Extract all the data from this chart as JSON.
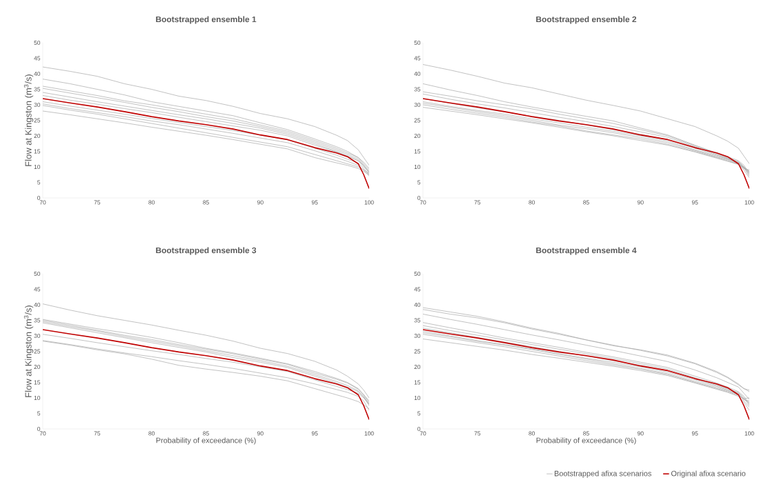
{
  "chart_data": [
    {
      "type": "line",
      "title": "Bootstrapped ensemble 1",
      "ylabel": "Flow at Kingston (m$^{3}$/s)",
      "xlim": [
        70,
        100
      ],
      "ylim": [
        0,
        50
      ],
      "xticks": [
        70,
        75,
        80,
        85,
        90,
        95,
        100
      ],
      "yticks": [
        0,
        5,
        10,
        15,
        20,
        25,
        30,
        35,
        40,
        45,
        50
      ],
      "x": [
        70,
        72.5,
        75,
        77.5,
        80,
        82.5,
        85,
        87.5,
        90,
        92.5,
        95,
        97,
        98,
        99,
        99.5,
        100
      ],
      "series": [
        {
          "color": "#a6a6a6",
          "values": [
            42.2,
            40.8,
            39.2,
            36.8,
            35.0,
            32.8,
            31.4,
            29.5,
            27.2,
            25.5,
            23.0,
            20.2,
            18.5,
            15.5,
            13,
            10.5
          ]
        },
        {
          "color": "#a6a6a6",
          "values": [
            38.3,
            36.8,
            35.0,
            33.2,
            31.0,
            29.5,
            28.0,
            26.5,
            24.2,
            22.0,
            19.0,
            16.5,
            15.0,
            13.0,
            11.5,
            9.5
          ]
        },
        {
          "color": "#a6a6a6",
          "values": [
            36,
            34.5,
            33.0,
            31.3,
            30.0,
            28.5,
            27.0,
            25.5,
            23.5,
            21.5,
            18.5,
            16.0,
            14.5,
            13.0,
            11.0,
            9
          ]
        },
        {
          "color": "#a6a6a6",
          "values": [
            35.3,
            33.8,
            32.3,
            30.8,
            29.2,
            27.8,
            26.2,
            24.8,
            23.0,
            21.0,
            18.0,
            15.5,
            14.0,
            12.5,
            10.5,
            8.5
          ]
        },
        {
          "color": "#a6a6a6",
          "values": [
            34,
            32.5,
            31.0,
            29.6,
            28.2,
            26.8,
            25.5,
            24.0,
            22.5,
            20.5,
            17.5,
            15.0,
            13.5,
            12.0,
            10.5,
            8
          ]
        },
        {
          "color": "#a6a6a6",
          "values": [
            33,
            31.5,
            30.2,
            28.8,
            27.5,
            26.0,
            24.6,
            23.2,
            21.8,
            20.0,
            17.0,
            14.8,
            13.5,
            12.0,
            10.0,
            8.5
          ]
        },
        {
          "color": "#a6a6a6",
          "values": [
            31,
            29.6,
            28.3,
            27.0,
            25.6,
            24.3,
            23.0,
            21.7,
            20.2,
            18.7,
            16.0,
            13.8,
            12.5,
            11.2,
            9.5,
            7.5
          ]
        },
        {
          "color": "#a6a6a6",
          "values": [
            30.3,
            28.8,
            27.5,
            26.2,
            24.8,
            23.6,
            22.2,
            20.8,
            19.3,
            17.8,
            15.2,
            13.0,
            11.8,
            10.5,
            9.0,
            7
          ]
        },
        {
          "color": "#a6a6a6",
          "values": [
            29.8,
            28.3,
            27.0,
            25.5,
            24.0,
            22.5,
            21.0,
            19.5,
            18.0,
            16.5,
            14.0,
            12.0,
            11.0,
            10.0,
            9.0,
            8
          ]
        },
        {
          "color": "#a6a6a6",
          "values": [
            28,
            26.8,
            25.5,
            24.2,
            22.8,
            21.5,
            20.2,
            18.8,
            17.3,
            15.8,
            13.0,
            11.3,
            10.5,
            9.5,
            8.5,
            7.5
          ]
        },
        {
          "color": "#c00000",
          "values": [
            32,
            30.6,
            29.3,
            27.8,
            26.2,
            24.8,
            23.6,
            22.2,
            20.3,
            18.8,
            16.2,
            14.5,
            13.3,
            11,
            7.5,
            3
          ]
        }
      ]
    },
    {
      "type": "line",
      "title": "Bootstrapped ensemble 2",
      "xlim": [
        70,
        100
      ],
      "ylim": [
        0,
        50
      ],
      "xticks": [
        70,
        75,
        80,
        85,
        90,
        95,
        100
      ],
      "yticks": [
        0,
        5,
        10,
        15,
        20,
        25,
        30,
        35,
        40,
        45,
        50
      ],
      "x": [
        70,
        72.5,
        75,
        77.5,
        80,
        82.5,
        85,
        87.5,
        90,
        92.5,
        95,
        97,
        98,
        99,
        99.5,
        100
      ],
      "series": [
        {
          "color": "#a6a6a6",
          "values": [
            43,
            41.2,
            39.2,
            37.0,
            35.5,
            33.5,
            31.5,
            29.8,
            28.0,
            25.5,
            23.0,
            20.0,
            18.3,
            16.0,
            13.5,
            11
          ]
        },
        {
          "color": "#a6a6a6",
          "values": [
            36.8,
            34.8,
            33.0,
            31.0,
            29.3,
            27.8,
            26.3,
            24.8,
            22.5,
            20.3,
            17.0,
            14.5,
            13.3,
            12.0,
            10.5,
            8
          ]
        },
        {
          "color": "#a6a6a6",
          "values": [
            34.2,
            32.8,
            31.3,
            30.0,
            28.7,
            27.0,
            25.5,
            24.0,
            22.0,
            20.0,
            16.8,
            14.3,
            13.0,
            11.7,
            10.0,
            7.5
          ]
        },
        {
          "color": "#a6a6a6",
          "values": [
            33.5,
            31.8,
            30.3,
            29.0,
            27.5,
            26.0,
            24.6,
            23.0,
            21.3,
            19.5,
            16.5,
            14.0,
            12.8,
            11.5,
            10.0,
            8.5
          ]
        },
        {
          "color": "#a6a6a6",
          "values": [
            32,
            30.5,
            29.0,
            27.7,
            26.3,
            25.0,
            23.5,
            22.0,
            20.5,
            18.8,
            16.0,
            13.8,
            12.7,
            11.3,
            9.8,
            7
          ]
        },
        {
          "color": "#a6a6a6",
          "values": [
            31,
            29.5,
            28.2,
            27.0,
            25.5,
            24.2,
            22.8,
            21.5,
            20.0,
            18.3,
            15.5,
            13.5,
            12.5,
            11.2,
            9.5,
            8
          ]
        },
        {
          "color": "#a6a6a6",
          "values": [
            30.5,
            29.2,
            27.8,
            26.5,
            25.0,
            23.5,
            22.3,
            21.0,
            19.5,
            17.8,
            15.3,
            13.2,
            12.3,
            11.0,
            9.0,
            6.5
          ]
        },
        {
          "color": "#a6a6a6",
          "values": [
            30,
            28.6,
            27.3,
            26.0,
            24.5,
            23.2,
            21.6,
            20.3,
            19.0,
            17.3,
            15.0,
            13.0,
            12.0,
            10.8,
            9.5,
            9
          ]
        },
        {
          "color": "#a6a6a6",
          "values": [
            29.2,
            28.0,
            26.8,
            25.5,
            24.2,
            22.8,
            21.3,
            20.0,
            18.5,
            17.0,
            14.8,
            12.8,
            11.8,
            10.8,
            9.8,
            8.5
          ]
        },
        {
          "color": "#c00000",
          "values": [
            32,
            30.6,
            29.3,
            27.8,
            26.2,
            24.8,
            23.6,
            22.2,
            20.3,
            18.8,
            16.2,
            14.5,
            13.3,
            11,
            7.5,
            3
          ]
        }
      ]
    },
    {
      "type": "line",
      "title": "Bootstrapped ensemble 3",
      "xlabel": "Probability of exceedance (%)",
      "ylabel": "Flow at Kingston (m$^{3}$/s)",
      "xlim": [
        70,
        100
      ],
      "ylim": [
        0,
        50
      ],
      "xticks": [
        70,
        75,
        80,
        85,
        90,
        95,
        100
      ],
      "yticks": [
        0,
        5,
        10,
        15,
        20,
        25,
        30,
        35,
        40,
        45,
        50
      ],
      "x": [
        70,
        72.5,
        75,
        77.5,
        80,
        82.5,
        85,
        87.5,
        90,
        92.5,
        95,
        97,
        98,
        99,
        99.5,
        100
      ],
      "series": [
        {
          "color": "#a6a6a6",
          "values": [
            40.3,
            38.3,
            36.5,
            35.0,
            33.5,
            31.8,
            30.2,
            28.3,
            26.0,
            24.3,
            21.8,
            19.0,
            17.0,
            14.5,
            12.5,
            10
          ]
        },
        {
          "color": "#a6a6a6",
          "values": [
            35.3,
            33.8,
            32.3,
            31.0,
            29.5,
            27.8,
            26.0,
            24.5,
            22.8,
            21.0,
            18.5,
            16.3,
            15.0,
            13.0,
            11.0,
            8.5
          ]
        },
        {
          "color": "#a6a6a6",
          "values": [
            35,
            33.4,
            31.8,
            30.2,
            28.8,
            27.2,
            25.7,
            24.2,
            22.5,
            20.8,
            18.0,
            16.0,
            14.8,
            12.8,
            11.0,
            9
          ]
        },
        {
          "color": "#a6a6a6",
          "values": [
            34.6,
            33.0,
            31.5,
            29.8,
            28.3,
            26.8,
            25.2,
            23.6,
            22.0,
            20.2,
            17.5,
            15.3,
            14.0,
            12.3,
            10.5,
            8
          ]
        },
        {
          "color": "#a6a6a6",
          "values": [
            34.2,
            32.6,
            31.0,
            29.4,
            27.8,
            26.3,
            24.8,
            23.0,
            21.5,
            19.8,
            17.0,
            14.8,
            13.5,
            12.0,
            10.3,
            7.5
          ]
        },
        {
          "color": "#a6a6a6",
          "values": [
            30.5,
            29.2,
            27.8,
            26.5,
            25.2,
            24.0,
            22.7,
            21.5,
            20.0,
            18.5,
            15.8,
            13.7,
            12.7,
            11.5,
            10.0,
            8
          ]
        },
        {
          "color": "#a6a6a6",
          "values": [
            28.5,
            27.2,
            25.8,
            24.5,
            23.3,
            22.0,
            20.8,
            19.5,
            18.0,
            16.5,
            14.5,
            12.7,
            11.8,
            10.5,
            9.0,
            6
          ]
        },
        {
          "color": "#a6a6a6",
          "values": [
            28.3,
            27.0,
            25.5,
            24.2,
            22.5,
            20.5,
            19.3,
            18.2,
            17.0,
            15.5,
            13.0,
            11.0,
            10.0,
            8.8,
            7.8,
            6.5
          ]
        },
        {
          "color": "#c00000",
          "values": [
            32,
            30.6,
            29.3,
            27.8,
            26.2,
            24.8,
            23.6,
            22.2,
            20.3,
            18.8,
            16.2,
            14.5,
            13.3,
            11,
            7.5,
            3
          ]
        }
      ]
    },
    {
      "type": "line",
      "title": "Bootstrapped ensemble 4",
      "xlabel": "Probability of exceedance (%)",
      "xlim": [
        70,
        100
      ],
      "ylim": [
        0,
        50
      ],
      "xticks": [
        70,
        75,
        80,
        85,
        90,
        95,
        100
      ],
      "yticks": [
        0,
        5,
        10,
        15,
        20,
        25,
        30,
        35,
        40,
        45,
        50
      ],
      "legend": "bottom",
      "x": [
        70,
        72.5,
        75,
        77.5,
        80,
        82.5,
        85,
        87.5,
        90,
        92.5,
        95,
        97,
        98,
        99,
        99.5,
        100
      ],
      "series": [
        {
          "name": "Bootstrapped afixa scenarios",
          "color": "#a6a6a6",
          "values": [
            39.1,
            37.7,
            36.3,
            34.5,
            32.5,
            30.8,
            28.7,
            26.8,
            25.5,
            23.8,
            21.2,
            18.5,
            16.7,
            14.5,
            13.0,
            12
          ]
        },
        {
          "color": "#a6a6a6",
          "values": [
            38.5,
            37.0,
            35.8,
            34.2,
            32.2,
            30.5,
            28.7,
            27.0,
            25.3,
            23.5,
            21.0,
            18.2,
            16.5,
            14.2,
            13.0,
            12.5
          ]
        },
        {
          "color": "#a6a6a6",
          "values": [
            37,
            35.3,
            33.7,
            32.0,
            30.3,
            28.7,
            27.0,
            25.3,
            23.5,
            21.7,
            19.0,
            16.5,
            15.0,
            13.5,
            11.5,
            9.5
          ]
        },
        {
          "color": "#a6a6a6",
          "values": [
            34.3,
            32.6,
            31.0,
            29.3,
            27.8,
            26.3,
            24.7,
            23.2,
            21.5,
            19.8,
            17.0,
            14.8,
            13.5,
            12.0,
            10.5,
            8
          ]
        },
        {
          "color": "#a6a6a6",
          "values": [
            33.3,
            31.7,
            30.2,
            28.7,
            27.2,
            25.7,
            24.2,
            22.7,
            21.0,
            19.3,
            16.5,
            14.3,
            13.0,
            11.7,
            10.0,
            7.5
          ]
        },
        {
          "color": "#a6a6a6",
          "values": [
            32.5,
            31.0,
            29.5,
            28.0,
            26.5,
            25.0,
            23.5,
            22.0,
            20.5,
            18.8,
            16.2,
            14.0,
            12.8,
            11.5,
            9.5,
            8.5
          ]
        },
        {
          "color": "#a6a6a6",
          "values": [
            31.5,
            30.0,
            28.5,
            27.2,
            25.8,
            24.3,
            22.8,
            21.5,
            20.0,
            18.3,
            15.8,
            13.7,
            12.5,
            11.2,
            9.0,
            7
          ]
        },
        {
          "color": "#a6a6a6",
          "values": [
            31,
            29.7,
            28.2,
            27.0,
            25.6,
            24.0,
            22.5,
            21.0,
            19.5,
            17.8,
            15.3,
            13.3,
            12.3,
            11.0,
            9.5,
            9
          ]
        },
        {
          "color": "#a6a6a6",
          "values": [
            30.5,
            29.2,
            27.8,
            26.5,
            25.0,
            23.5,
            22.0,
            20.6,
            19.2,
            17.5,
            15.0,
            13.0,
            12.0,
            10.8,
            9.8,
            10
          ]
        },
        {
          "color": "#a6a6a6",
          "values": [
            29,
            27.8,
            26.6,
            25.4,
            24.0,
            22.8,
            21.5,
            20.2,
            18.8,
            17.2,
            14.8,
            12.8,
            11.8,
            10.5,
            8.5,
            6
          ]
        },
        {
          "name": "Original afixa scenario",
          "color": "#c00000",
          "values": [
            32,
            30.6,
            29.3,
            27.8,
            26.2,
            24.8,
            23.6,
            22.2,
            20.3,
            18.8,
            16.2,
            14.5,
            13.3,
            11,
            7.5,
            3
          ]
        }
      ]
    }
  ]
}
